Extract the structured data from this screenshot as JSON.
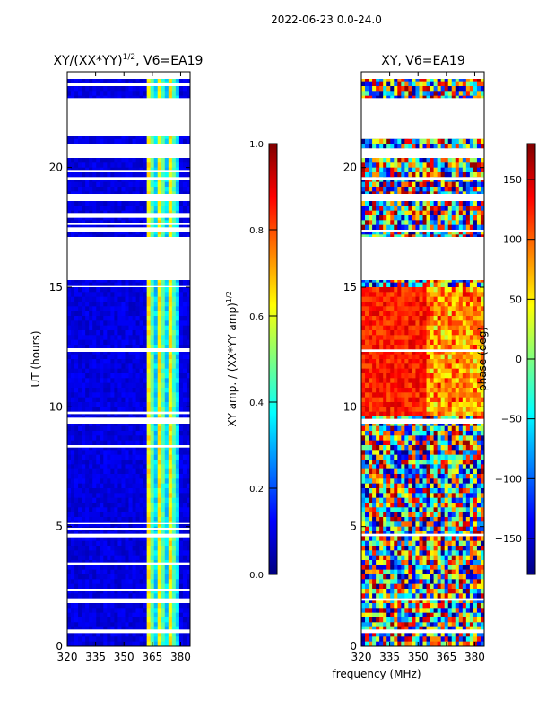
{
  "figure_title": "2022-06-23 0.0-24.0",
  "shared_xlabel": "frequency (MHz)",
  "colormap": {
    "name": "jet",
    "stops": [
      "#00007f",
      "#0000ff",
      "#007fff",
      "#00ffff",
      "#7fff7f",
      "#ffff00",
      "#ff7f00",
      "#ff0000",
      "#7f0000"
    ]
  },
  "chart_data": [
    {
      "type": "heatmap",
      "title_main": "XY/(XX*YY)",
      "title_sup": "1/2",
      "title_tail": ", V6=EA19",
      "ylabel": "UT (hours)",
      "xlim": [
        320,
        385
      ],
      "ylim": [
        0,
        24
      ],
      "xticks": [
        320,
        335,
        350,
        365,
        380
      ],
      "yticks": [
        0,
        5,
        10,
        15,
        20
      ],
      "x_tick_labels": [
        "320",
        "335",
        "350",
        "365",
        "380"
      ],
      "y_tick_labels": [
        "0",
        "5",
        "10",
        "15",
        "20"
      ],
      "data_gaps_hours": [
        [
          0.55,
          0.7
        ],
        [
          1.8,
          2.0
        ],
        [
          2.3,
          2.4
        ],
        [
          3.4,
          3.5
        ],
        [
          4.55,
          4.7
        ],
        [
          4.85,
          4.95
        ],
        [
          5.1,
          5.15
        ],
        [
          8.3,
          8.4
        ],
        [
          9.3,
          9.55
        ],
        [
          9.7,
          9.8
        ],
        [
          12.3,
          12.45
        ],
        [
          15.0,
          15.05
        ],
        [
          15.3,
          17.1
        ],
        [
          17.3,
          17.5
        ],
        [
          17.6,
          17.7
        ],
        [
          17.9,
          18.1
        ],
        [
          18.6,
          18.9
        ],
        [
          19.5,
          19.6
        ],
        [
          19.8,
          19.9
        ],
        [
          20.4,
          21.0
        ],
        [
          21.3,
          22.9
        ],
        [
          23.4,
          23.55
        ],
        [
          23.7,
          24.0
        ]
      ],
      "colorbar": {
        "label_main": "XY amp. / (XX*YY amp)",
        "label_sup": "1/2",
        "range": [
          0.0,
          1.0
        ],
        "ticks": [
          0.0,
          0.2,
          0.4,
          0.6,
          0.8,
          1.0
        ],
        "tick_labels": [
          "0.0",
          "0.2",
          "0.4",
          "0.6",
          "0.8",
          "1.0"
        ]
      }
    },
    {
      "type": "heatmap",
      "title": "XY, V6=EA19",
      "xlim": [
        320,
        385
      ],
      "ylim": [
        0,
        24
      ],
      "xticks": [
        320,
        335,
        350,
        365,
        380
      ],
      "yticks": [
        0,
        5,
        10,
        15,
        20
      ],
      "x_tick_labels": [
        "320",
        "335",
        "350",
        "365",
        "380"
      ],
      "y_tick_labels": [
        "0",
        "5",
        "10",
        "15",
        "20"
      ],
      "data_gaps_hours": [
        [
          0.55,
          0.7
        ],
        [
          1.9,
          2.0
        ],
        [
          4.6,
          4.7
        ],
        [
          9.3,
          9.5
        ],
        [
          12.3,
          12.4
        ],
        [
          15.3,
          17.1
        ],
        [
          17.3,
          17.4
        ],
        [
          18.6,
          18.9
        ],
        [
          19.5,
          19.6
        ],
        [
          20.4,
          20.8
        ],
        [
          21.2,
          22.9
        ],
        [
          23.7,
          24.0
        ]
      ],
      "colorbar": {
        "label": "phase (deg)",
        "range": [
          -180,
          180
        ],
        "ticks": [
          -150,
          -100,
          -50,
          0,
          50,
          100,
          150
        ],
        "tick_labels": [
          "−150",
          "−100",
          "−50",
          "0",
          "50",
          "100",
          "150"
        ]
      }
    }
  ]
}
